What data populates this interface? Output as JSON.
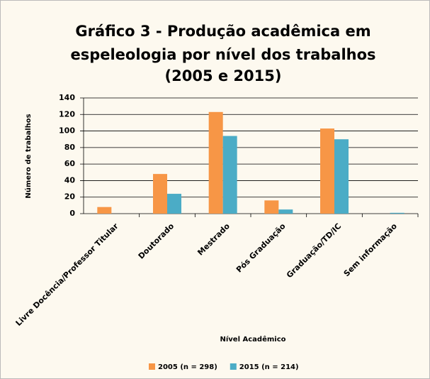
{
  "chart_data": {
    "type": "bar",
    "title": [
      "Gráfico 3 - Produção acadêmica em",
      "espeleologia por nível dos trabalhos",
      "(2005 e 2015)"
    ],
    "categories": [
      "Livre Docência/Professor Titular",
      "Doutorado",
      "Mestrado",
      "Pós Graduação",
      "Graduação/TD/IC",
      "Sem informação"
    ],
    "series": [
      {
        "name": "2005 (n = 298)",
        "color": "#f79646",
        "values": [
          8,
          48,
          123,
          16,
          103,
          0
        ]
      },
      {
        "name": "2015 (n = 214)",
        "color": "#4bacc6",
        "values": [
          0,
          24,
          94,
          5,
          90,
          1
        ]
      }
    ],
    "ylim": [
      0,
      140
    ],
    "yticks": [
      0,
      20,
      40,
      60,
      80,
      100,
      120,
      140
    ],
    "grid": true,
    "y_axis_label": "Número de trabalhos",
    "x_axis_label": "Nível Acadêmico",
    "legend": "bottom"
  }
}
